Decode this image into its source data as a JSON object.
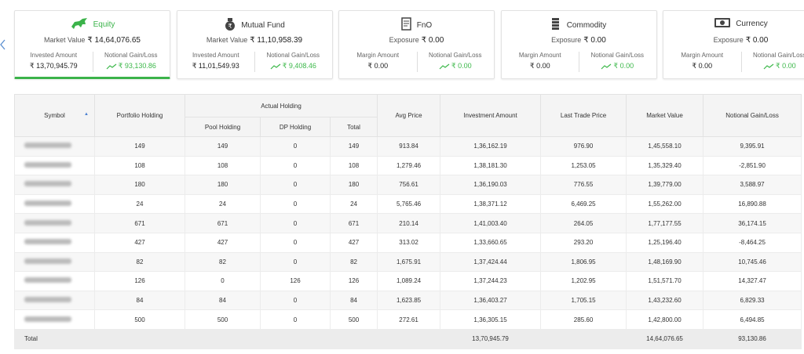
{
  "cards": [
    {
      "title": "Equity",
      "main_label": "Market Value",
      "main_value": "₹ 14,64,076.65",
      "left_label": "Invested Amount",
      "left_value": "₹ 13,70,945.79",
      "right_label": "Notional Gain/Loss",
      "right_value": "₹ 93,130.86"
    },
    {
      "title": "Mutual Fund",
      "main_label": "Market Value",
      "main_value": "₹ 11,10,958.39",
      "left_label": "Invested Amount",
      "left_value": "₹ 11,01,549.93",
      "right_label": "Notional Gain/Loss",
      "right_value": "₹ 9,408.46"
    },
    {
      "title": "FnO",
      "main_label": "Exposure",
      "main_value": "₹ 0.00",
      "left_label": "Margin Amount",
      "left_value": "₹ 0.00",
      "right_label": "Notional Gain/Loss",
      "right_value": "₹ 0.00"
    },
    {
      "title": "Commodity",
      "main_label": "Exposure",
      "main_value": "₹ 0.00",
      "left_label": "Margin Amount",
      "left_value": "₹ 0.00",
      "right_label": "Notional Gain/Loss",
      "right_value": "₹ 0.00"
    },
    {
      "title": "Currency",
      "main_label": "Exposure",
      "main_value": "₹ 0.00",
      "left_label": "Margin Amount",
      "left_value": "₹ 0.00",
      "right_label": "Notional Gain/Loss",
      "right_value": "₹ 0.00"
    }
  ],
  "table": {
    "headers": [
      "Symbol",
      "Portfolio Holding",
      "Actual Holding",
      "Avg Price",
      "Investment Amount",
      "Last Trade Price",
      "Market Value",
      "Notional Gain/Loss"
    ],
    "subheaders": [
      "Pool Holding",
      "DP Holding",
      "Total"
    ],
    "rows": [
      [
        "149",
        "149",
        "0",
        "149",
        "913.84",
        "1,36,162.19",
        "976.90",
        "1,45,558.10",
        "9,395.91"
      ],
      [
        "108",
        "108",
        "0",
        "108",
        "1,279.46",
        "1,38,181.30",
        "1,253.05",
        "1,35,329.40",
        "-2,851.90"
      ],
      [
        "180",
        "180",
        "0",
        "180",
        "756.61",
        "1,36,190.03",
        "776.55",
        "1,39,779.00",
        "3,588.97"
      ],
      [
        "24",
        "24",
        "0",
        "24",
        "5,765.46",
        "1,38,371.12",
        "6,469.25",
        "1,55,262.00",
        "16,890.88"
      ],
      [
        "671",
        "671",
        "0",
        "671",
        "210.14",
        "1,41,003.40",
        "264.05",
        "1,77,177.55",
        "36,174.15"
      ],
      [
        "427",
        "427",
        "0",
        "427",
        "313.02",
        "1,33,660.65",
        "293.20",
        "1,25,196.40",
        "-8,464.25"
      ],
      [
        "82",
        "82",
        "0",
        "82",
        "1,675.91",
        "1,37,424.44",
        "1,806.95",
        "1,48,169.90",
        "10,745.46"
      ],
      [
        "126",
        "0",
        "126",
        "126",
        "1,089.24",
        "1,37,244.23",
        "1,202.95",
        "1,51,571.70",
        "14,327.47"
      ],
      [
        "84",
        "84",
        "0",
        "84",
        "1,623.85",
        "1,36,403.27",
        "1,705.15",
        "1,43,232.60",
        "6,829.33"
      ],
      [
        "500",
        "500",
        "0",
        "500",
        "272.61",
        "1,36,305.15",
        "285.60",
        "1,42,800.00",
        "6,494.85"
      ]
    ],
    "total": {
      "label": "Total",
      "investment_amount": "13,70,945.79",
      "market_value": "14,64,076.65",
      "gain_loss": "93,130.86"
    }
  }
}
